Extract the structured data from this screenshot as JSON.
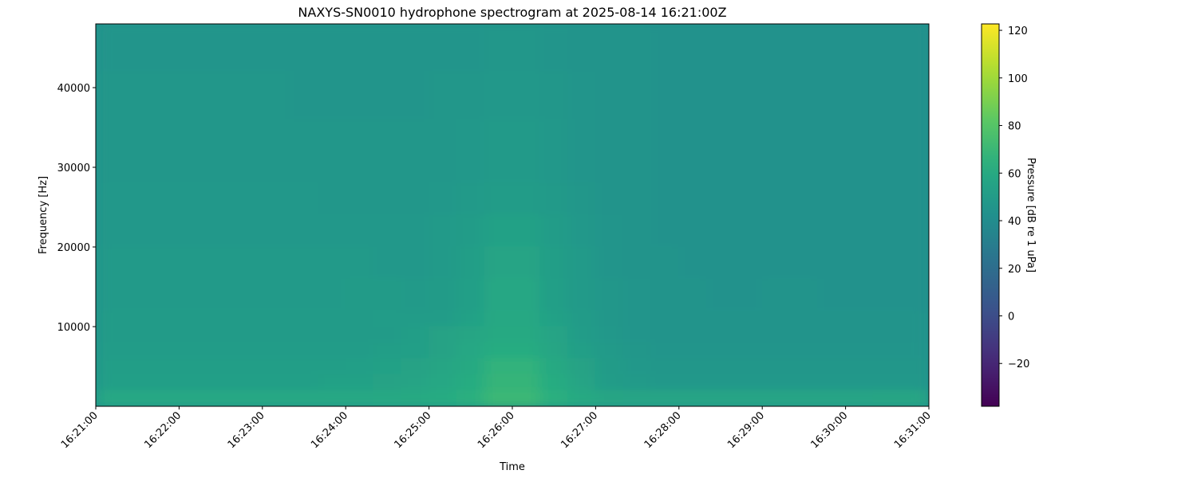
{
  "chart_data": {
    "type": "heatmap",
    "title": "NAXYS-SN0010 hydrophone spectrogram at 2025-08-14 16:21:00Z",
    "xlabel": "Time",
    "ylabel": "Frequency [Hz]",
    "colorbar_label": "Pressure [dB re 1 uPa]",
    "colormap": "viridis",
    "color_range": [
      -38,
      122.7
    ],
    "colorbar_ticks": [
      -20,
      0,
      20,
      40,
      60,
      80,
      100,
      120
    ],
    "colorbar_tick_labels": [
      "−20",
      "0",
      "20",
      "40",
      "60",
      "80",
      "100",
      "120"
    ],
    "x_range": [
      "16:21:00",
      "16:31:00"
    ],
    "x_ticks": [
      "16:21:00",
      "16:22:00",
      "16:23:00",
      "16:24:00",
      "16:25:00",
      "16:26:00",
      "16:27:00",
      "16:28:00",
      "16:29:00",
      "16:30:00",
      "16:31:00"
    ],
    "y_range": [
      0,
      48000
    ],
    "y_ticks": [
      10000,
      20000,
      30000,
      40000
    ],
    "y_tick_labels": [
      "10000",
      "20000",
      "30000",
      "40000"
    ],
    "time_bin_seconds": 20,
    "frequency_bin_hz": 2000,
    "frequency_bins_top_to_bottom_hz": [
      47000,
      45000,
      43000,
      41000,
      39000,
      37000,
      35000,
      33000,
      31000,
      29000,
      27000,
      25000,
      23000,
      21000,
      19000,
      17000,
      15000,
      13000,
      11000,
      9000,
      7000,
      5000,
      3000,
      1000
    ],
    "values_db": [
      [
        46,
        46,
        46,
        46,
        46,
        46,
        46,
        46,
        46,
        46,
        46,
        46,
        46,
        46,
        47,
        47,
        46,
        45,
        45,
        45,
        44,
        44,
        44,
        44,
        44,
        44,
        44,
        44,
        44,
        44
      ],
      [
        46,
        46,
        46,
        46,
        46,
        46,
        46,
        46,
        46,
        46,
        46,
        46,
        46,
        46,
        47,
        47,
        46,
        45,
        45,
        45,
        44,
        44,
        44,
        44,
        44,
        44,
        44,
        44,
        44,
        44
      ],
      [
        46,
        46,
        46,
        46,
        46,
        46,
        46,
        46,
        46,
        46,
        46,
        46,
        46,
        46,
        47,
        47,
        46,
        45,
        45,
        45,
        44,
        44,
        44,
        44,
        44,
        44,
        44,
        44,
        44,
        44
      ],
      [
        47,
        47,
        47,
        47,
        47,
        47,
        47,
        46,
        46,
        46,
        46,
        46,
        47,
        47,
        48,
        48,
        47,
        46,
        45,
        45,
        44,
        44,
        44,
        44,
        44,
        44,
        44,
        44,
        44,
        44
      ],
      [
        47,
        47,
        47,
        47,
        47,
        47,
        47,
        46,
        46,
        46,
        46,
        46,
        47,
        47,
        48,
        48,
        47,
        46,
        45,
        45,
        44,
        44,
        44,
        44,
        44,
        44,
        44,
        44,
        44,
        44
      ],
      [
        47,
        47,
        47,
        47,
        47,
        47,
        47,
        46,
        46,
        46,
        46,
        46,
        47,
        47,
        48,
        48,
        47,
        46,
        45,
        45,
        44,
        44,
        44,
        44,
        44,
        44,
        44,
        44,
        44,
        44
      ],
      [
        47,
        47,
        47,
        47,
        47,
        47,
        47,
        47,
        47,
        47,
        47,
        47,
        47,
        48,
        49,
        49,
        48,
        46,
        45,
        45,
        44,
        44,
        44,
        44,
        44,
        44,
        44,
        44,
        44,
        44
      ],
      [
        47,
        47,
        47,
        47,
        47,
        47,
        47,
        47,
        47,
        47,
        47,
        47,
        47,
        48,
        49,
        49,
        48,
        46,
        45,
        45,
        44,
        44,
        44,
        44,
        44,
        44,
        44,
        44,
        44,
        44
      ],
      [
        47,
        47,
        47,
        47,
        47,
        47,
        47,
        47,
        47,
        47,
        47,
        47,
        47,
        48,
        49,
        49,
        48,
        46,
        45,
        45,
        44,
        44,
        44,
        44,
        44,
        44,
        44,
        44,
        44,
        44
      ],
      [
        47,
        47,
        47,
        47,
        47,
        47,
        47,
        47,
        47,
        47,
        47,
        47,
        47,
        48,
        49,
        49,
        48,
        46,
        45,
        45,
        44,
        44,
        44,
        44,
        44,
        44,
        44,
        44,
        44,
        44
      ],
      [
        48,
        48,
        48,
        48,
        48,
        48,
        48,
        48,
        47,
        47,
        47,
        47,
        48,
        49,
        51,
        51,
        49,
        47,
        45,
        45,
        44,
        44,
        44,
        44,
        44,
        44,
        44,
        44,
        44,
        44
      ],
      [
        48,
        48,
        48,
        48,
        48,
        48,
        48,
        48,
        47,
        47,
        47,
        47,
        48,
        49,
        51,
        51,
        49,
        47,
        45,
        45,
        44,
        44,
        44,
        44,
        44,
        44,
        44,
        44,
        44,
        44
      ],
      [
        48,
        48,
        48,
        48,
        48,
        48,
        48,
        48,
        48,
        48,
        48,
        48,
        49,
        51,
        54,
        54,
        51,
        48,
        46,
        45,
        44,
        44,
        44,
        44,
        44,
        44,
        44,
        44,
        44,
        44
      ],
      [
        48,
        48,
        48,
        48,
        48,
        48,
        48,
        48,
        48,
        48,
        48,
        48,
        49,
        51,
        54,
        54,
        51,
        48,
        46,
        45,
        44,
        44,
        44,
        44,
        44,
        44,
        44,
        44,
        44,
        44
      ],
      [
        49,
        49,
        49,
        49,
        49,
        49,
        49,
        49,
        49,
        49,
        48,
        48,
        49,
        52,
        56,
        56,
        52,
        49,
        46,
        45,
        45,
        44,
        44,
        44,
        44,
        44,
        44,
        44,
        44,
        44
      ],
      [
        49,
        49,
        49,
        49,
        49,
        49,
        49,
        49,
        49,
        49,
        48,
        48,
        49,
        52,
        56,
        56,
        52,
        49,
        46,
        45,
        45,
        44,
        44,
        44,
        44,
        44,
        44,
        44,
        44,
        44
      ],
      [
        49,
        49,
        49,
        49,
        49,
        49,
        49,
        49,
        49,
        50,
        50,
        49,
        50,
        53,
        58,
        58,
        53,
        49,
        47,
        46,
        45,
        45,
        44,
        44,
        45,
        45,
        44,
        44,
        44,
        44
      ],
      [
        49,
        49,
        49,
        49,
        49,
        49,
        49,
        49,
        49,
        50,
        50,
        49,
        50,
        53,
        58,
        58,
        53,
        49,
        47,
        46,
        45,
        45,
        44,
        44,
        45,
        45,
        44,
        44,
        44,
        44
      ],
      [
        50,
        50,
        50,
        50,
        50,
        50,
        50,
        50,
        50,
        50,
        51,
        51,
        51,
        54,
        59,
        59,
        54,
        50,
        47,
        46,
        45,
        45,
        45,
        45,
        45,
        45,
        45,
        45,
        45,
        45
      ],
      [
        50,
        50,
        50,
        50,
        50,
        50,
        50,
        50,
        50,
        50,
        50,
        52,
        55,
        57,
        60,
        60,
        56,
        51,
        48,
        46,
        45,
        45,
        45,
        45,
        45,
        45,
        45,
        45,
        45,
        45
      ],
      [
        51,
        51,
        51,
        51,
        51,
        51,
        51,
        51,
        51,
        51,
        52,
        53,
        55,
        58,
        62,
        62,
        57,
        53,
        49,
        47,
        46,
        46,
        46,
        46,
        46,
        46,
        46,
        46,
        46,
        46
      ],
      [
        52,
        52,
        52,
        52,
        52,
        52,
        52,
        52,
        52,
        53,
        54,
        55,
        57,
        60,
        66,
        66,
        60,
        55,
        50,
        48,
        47,
        47,
        47,
        47,
        47,
        47,
        47,
        47,
        47,
        47
      ],
      [
        53,
        53,
        53,
        53,
        53,
        53,
        53,
        53,
        54,
        54,
        55,
        56,
        58,
        62,
        68,
        68,
        62,
        56,
        51,
        49,
        48,
        48,
        48,
        48,
        48,
        48,
        48,
        48,
        48,
        48
      ],
      [
        58,
        58,
        58,
        58,
        58,
        58,
        58,
        58,
        58,
        58,
        59,
        60,
        61,
        64,
        70,
        70,
        64,
        60,
        57,
        56,
        56,
        56,
        56,
        56,
        56,
        56,
        56,
        56,
        57,
        57
      ]
    ]
  }
}
